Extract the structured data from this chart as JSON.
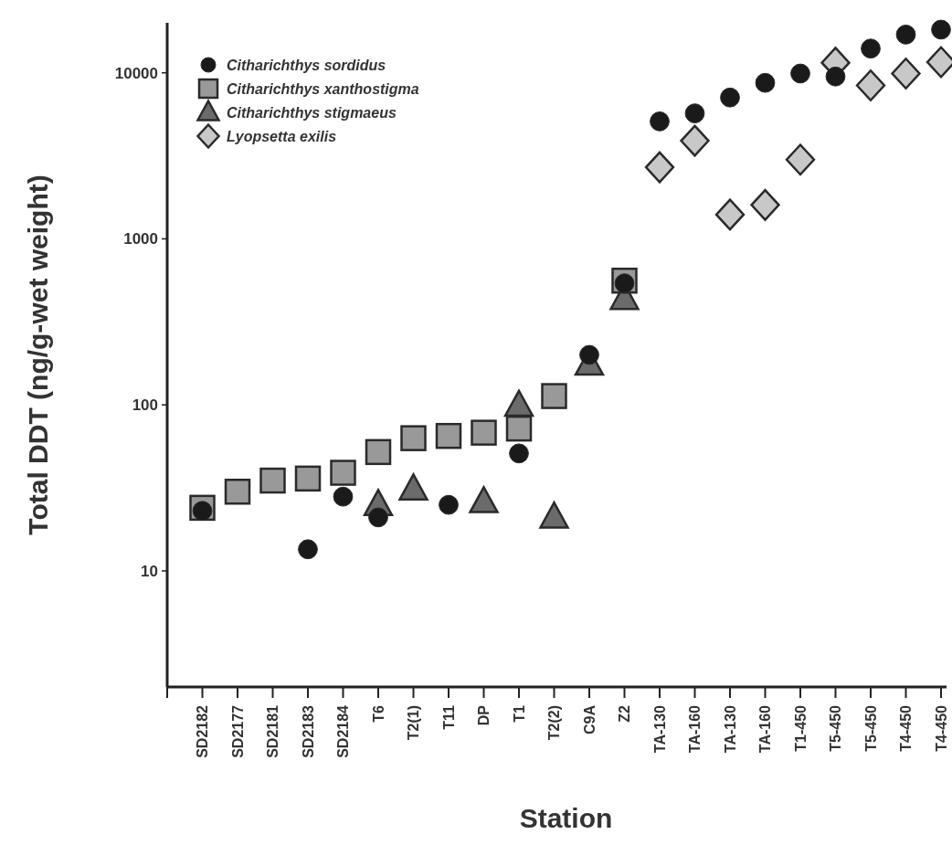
{
  "chart_data": {
    "type": "scatter",
    "xlabel": "Station",
    "ylabel": "Total DDT (ng/g-wet weight)",
    "categories": [
      "SD2182",
      "SD2177",
      "SD2181",
      "SD2183",
      "SD2184",
      "T6",
      "T2(1)",
      "T11",
      "DP",
      "T1",
      "T2(2)",
      "C9A",
      "Z2",
      "TA-130",
      "TA-160",
      "TA-130",
      "TA-160",
      "T1-450",
      "T5-450",
      "T5-450",
      "T4-450",
      "T4-450"
    ],
    "log": true,
    "ylim": [
      2,
      20000
    ],
    "yticks": [
      10,
      100,
      1000,
      10000
    ],
    "grid": false,
    "legend": "top left",
    "series": [
      {
        "name": "Citharichthys sordidus",
        "color": "#1a1a1a",
        "marker": "circle",
        "values": [
          23,
          null,
          null,
          13.5,
          28,
          21,
          null,
          25,
          null,
          51,
          null,
          200,
          540,
          5100,
          5700,
          7100,
          8700,
          9900,
          9500,
          14000,
          17000,
          18200
        ]
      },
      {
        "name": "Citharichthys xanthostigma",
        "color": "#999999",
        "marker": "square",
        "values": [
          24,
          30,
          35,
          36,
          39,
          52,
          63,
          65,
          68,
          72,
          113,
          null,
          560,
          null,
          null,
          null,
          null,
          null,
          null,
          null,
          null,
          null
        ]
      },
      {
        "name": "Citharichthys stigmaeus",
        "color": "#6b6b6b",
        "marker": "triangle",
        "values": [
          null,
          null,
          null,
          null,
          null,
          25,
          31,
          null,
          26,
          99,
          21,
          175,
          435,
          null,
          null,
          null,
          null,
          null,
          null,
          null,
          null,
          null
        ]
      },
      {
        "name": "Lyopsetta exilis",
        "color": "#c8c8c8",
        "marker": "diamond",
        "values": [
          null,
          null,
          null,
          null,
          null,
          null,
          null,
          null,
          null,
          null,
          null,
          null,
          null,
          2700,
          3900,
          1400,
          1600,
          3000,
          11500,
          8400,
          9900,
          11600
        ]
      }
    ]
  }
}
